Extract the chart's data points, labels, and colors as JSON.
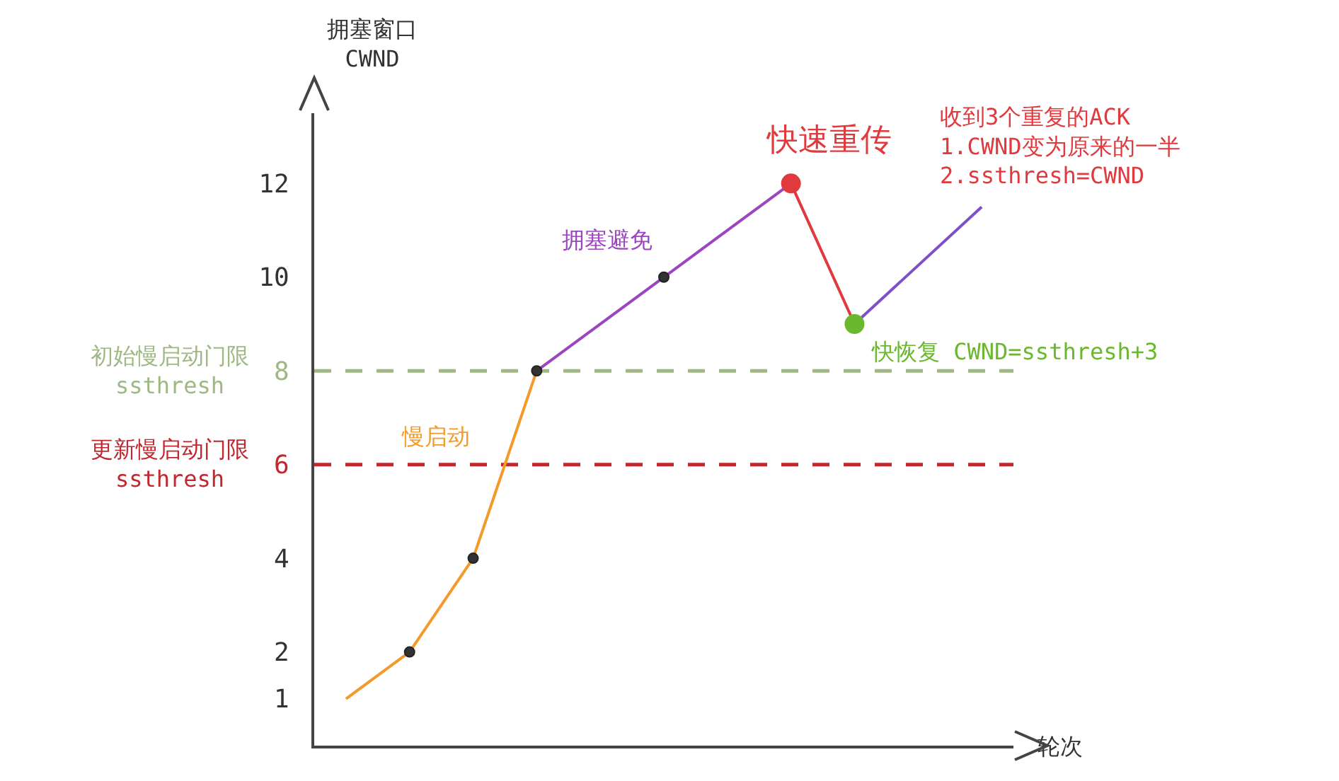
{
  "chart_data": {
    "type": "line",
    "xlabel": "轮次",
    "ylabel": "拥塞窗口\nCWND",
    "categories": [
      null,
      null,
      null,
      null,
      null,
      null,
      null,
      null,
      null,
      null,
      null
    ],
    "ylim": [
      0,
      13.5
    ],
    "yticks": [
      1,
      2,
      4,
      6,
      8,
      10,
      12
    ],
    "grid": false,
    "tick_labels": "y",
    "series": [
      {
        "name": "慢启动",
        "color": "#f39a2b",
        "values": [
          1,
          2,
          4,
          8,
          null,
          null,
          null,
          null,
          null,
          null,
          null
        ]
      },
      {
        "name": "拥塞避免",
        "color": "#9b45c0",
        "values": [
          null,
          null,
          null,
          8,
          null,
          10,
          null,
          12,
          null,
          null,
          null
        ]
      },
      {
        "color": "#e0393e",
        "values": [
          null,
          null,
          null,
          null,
          null,
          null,
          null,
          12,
          9,
          null,
          null
        ]
      },
      {
        "color": "#7f4fc9",
        "values": [
          null,
          null,
          null,
          null,
          null,
          null,
          null,
          null,
          9,
          null,
          11.5
        ]
      },
      {
        "type": "scatter",
        "color": "#333333",
        "values": [
          null,
          2,
          4,
          8,
          null,
          10,
          null,
          null,
          null,
          null,
          null
        ]
      },
      {
        "name": "快速重传",
        "type": "scatter",
        "color": "#e0393e",
        "values": [
          null,
          null,
          null,
          null,
          null,
          null,
          null,
          12,
          null,
          null,
          null
        ]
      },
      {
        "name": "快恢复 CWND=ssthresh+3",
        "type": "scatter",
        "color": "#6ab82e",
        "values": [
          null,
          null,
          null,
          null,
          null,
          null,
          null,
          null,
          9,
          null,
          null
        ]
      }
    ],
    "ref_lines": [
      {
        "axis": "y",
        "value": 8,
        "label": "初始慢启动门限\nssthresh",
        "color": "#9fb883",
        "line_style": "dashed"
      },
      {
        "axis": "y",
        "value": 6,
        "label": "更新慢启动门限\nssthresh",
        "color": "#c0282f",
        "line_style": "dashed"
      }
    ],
    "annotations": [
      "收到3个重复的ACK\n1.CWND变为原来的一半\n2.ssthresh=CWND"
    ]
  }
}
